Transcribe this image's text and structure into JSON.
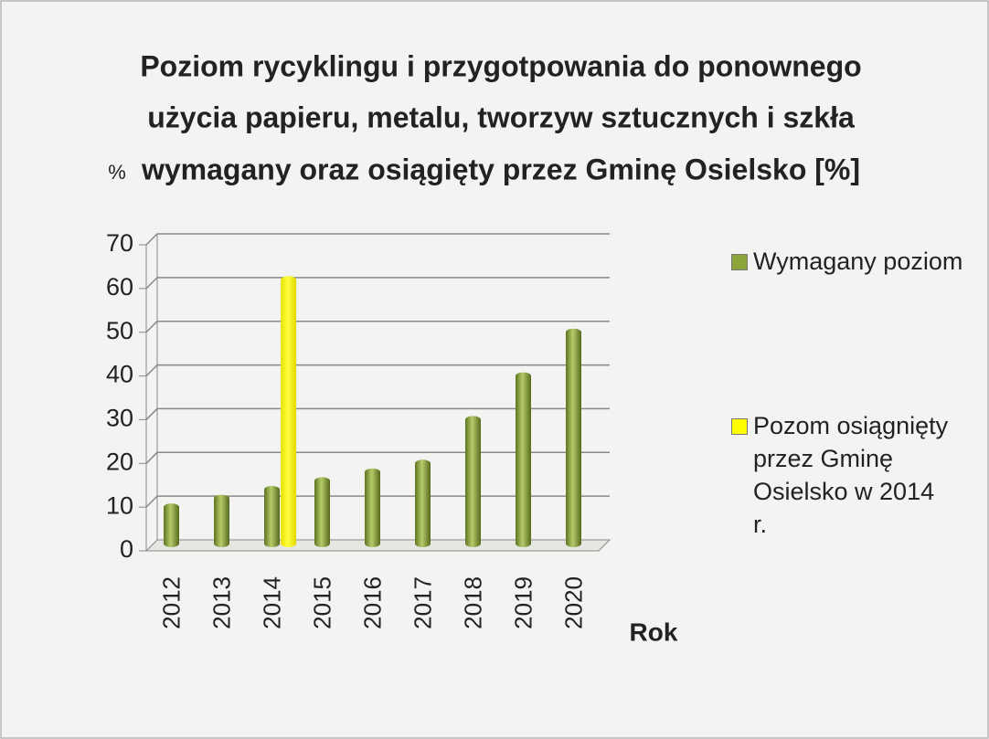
{
  "chart_data": {
    "type": "bar",
    "title": [
      "Poziom  rycyklingu i przygotpowania do ponownego",
      "użycia papieru, metalu, tworzyw sztucznych i szkła",
      "wymagany oraz osiągięty  przez Gminę Osielsko [%]"
    ],
    "y_label": "%",
    "x_label": "Rok",
    "categories": [
      "2012",
      "2013",
      "2014",
      "2015",
      "2016",
      "2017",
      "2018",
      "2019",
      "2020"
    ],
    "series": [
      {
        "name": "Wymagany poziom",
        "color": "#8ca63a",
        "values": [
          10,
          12,
          14,
          16,
          18,
          20,
          30,
          40,
          50
        ]
      },
      {
        "name": "Pozom osiągnięty przez Gminę Osielsko w 2014 r.",
        "color": "#ffff00",
        "values": [
          null,
          null,
          62,
          null,
          null,
          null,
          null,
          null,
          null
        ]
      }
    ],
    "ylim": [
      0,
      70
    ],
    "yticks": [
      0,
      10,
      20,
      30,
      40,
      50,
      60,
      70
    ],
    "grid": true,
    "legend": "right"
  }
}
